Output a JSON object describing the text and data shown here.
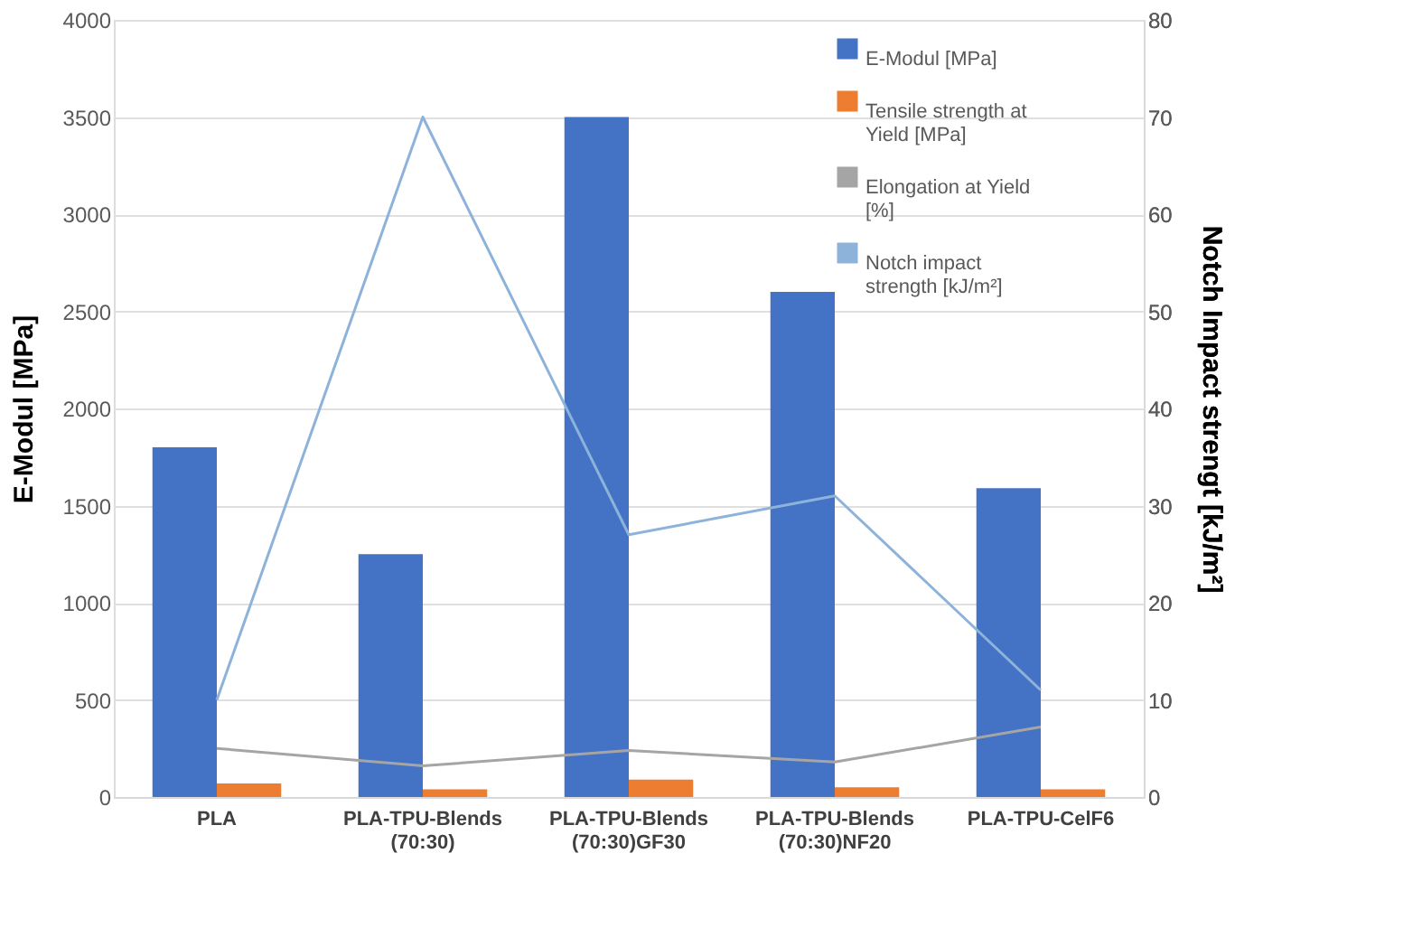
{
  "chart_data": {
    "type": "bar",
    "ylabel": "E-Modul [MPa]",
    "y2label": "Notch Impact strengt [kJ/m²]",
    "categories": [
      "PLA",
      "PLA-TPU-Blends (70:30)",
      "PLA-TPU-Blends (70:30)GF30",
      "PLA-TPU-Blends (70:30)NF20",
      "PLA-TPU-CelF6"
    ],
    "series": [
      {
        "name": "E-Modul [MPa]",
        "color": "#4472c4",
        "values": [
          1800,
          1250,
          3500,
          2600,
          1590
        ]
      },
      {
        "name": "Tensile strength at Yield [MPa]",
        "color": "#ed7d31",
        "values": [
          70,
          40,
          90,
          50,
          40
        ]
      },
      {
        "name": "Elongation at Yield [%]",
        "color": "#a5a5a5",
        "type": "line",
        "axis": "y2",
        "values": [
          5,
          3.2,
          4.8,
          3.6,
          7.2
        ]
      },
      {
        "name": "Notch impact strength [kJ/m²]",
        "color": "#8db3db",
        "type": "line",
        "axis": "y2",
        "values": [
          10,
          70,
          27,
          31,
          11
        ]
      }
    ],
    "ylim": [
      0,
      4000
    ],
    "yticks": [
      0,
      500,
      1000,
      1500,
      2000,
      2500,
      3000,
      3500,
      4000
    ],
    "y2lim": [
      0,
      80
    ],
    "y2ticks": [
      0,
      10,
      20,
      30,
      40,
      50,
      60,
      70,
      80
    ],
    "grid": "y",
    "legend": "top right",
    "marker": "none",
    "line_style": "solid"
  }
}
